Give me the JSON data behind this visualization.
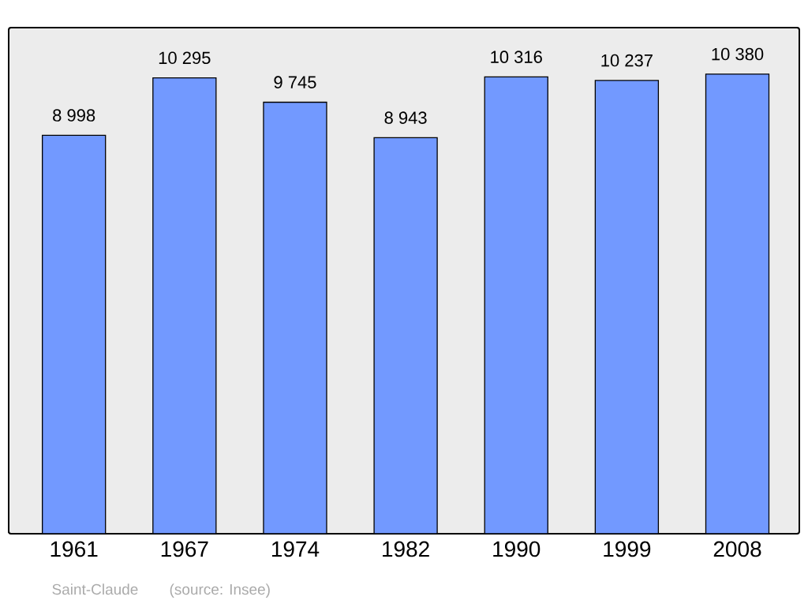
{
  "chart_data": {
    "type": "bar",
    "categories": [
      "1961",
      "1967",
      "1974",
      "1982",
      "1990",
      "1999",
      "2008"
    ],
    "values": [
      8998,
      10295,
      9745,
      8943,
      10316,
      10237,
      10380
    ],
    "value_labels": [
      "8 998",
      "10 295",
      "9 745",
      "8 943",
      "10 316",
      "10 237",
      "10 380"
    ],
    "color": "#7299ff",
    "ylim": [
      0,
      11430
    ],
    "annotations": [
      "Saint-Claude",
      "(source: Insee)"
    ]
  }
}
